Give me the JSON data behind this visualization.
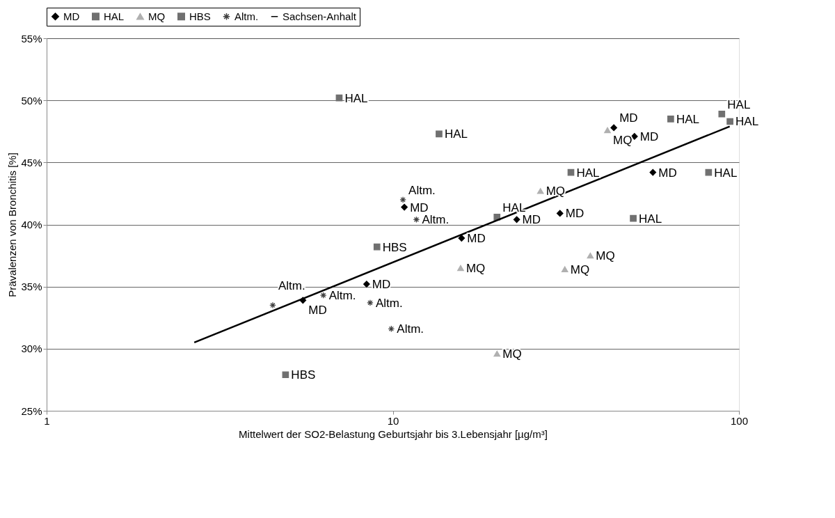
{
  "chart_data": {
    "type": "scatter",
    "xlabel": "Mittelwert der SO2-Belastung Geburtsjahr bis 3.Lebensjahr [µg/m³]",
    "ylabel": "Prävalenzen von Bronchitis [%]",
    "log": "x",
    "xlim": [
      1,
      100
    ],
    "xticks": [
      1,
      10,
      100
    ],
    "ylim": [
      25,
      55
    ],
    "yticks": [
      {
        "value": 25,
        "label": "25%"
      },
      {
        "value": 30,
        "label": "30%"
      },
      {
        "value": 35,
        "label": "35%"
      },
      {
        "value": 40,
        "label": "40%"
      },
      {
        "value": 45,
        "label": "45%"
      },
      {
        "value": 50,
        "label": "50%"
      },
      {
        "value": 55,
        "label": "55%"
      }
    ],
    "grid": "y",
    "legend": "top",
    "series": [
      {
        "name": "MD",
        "color": "#000000",
        "marker": "diamond",
        "x": [
          5.5,
          8.4,
          10.8,
          15.8,
          22.8,
          30.4,
          43.5,
          49.9,
          56.4
        ],
        "values": [
          33.9,
          35.2,
          41.4,
          38.9,
          40.4,
          40.9,
          47.8,
          47.1,
          44.2
        ]
      },
      {
        "name": "HAL",
        "color": "#707070",
        "marker": "square",
        "x": [
          7.0,
          13.6,
          20.0,
          32.7,
          49.5,
          63.5,
          81.7,
          89.2,
          94.2
        ],
        "values": [
          50.2,
          47.3,
          40.6,
          44.2,
          40.5,
          48.5,
          44.2,
          48.9,
          48.3
        ]
      },
      {
        "name": "MQ",
        "color": "#b0b0b0",
        "marker": "triangle",
        "x": [
          15.7,
          20.0,
          26.7,
          31.4,
          37.2,
          41.7
        ],
        "values": [
          36.5,
          29.6,
          42.7,
          36.4,
          37.5,
          47.6
        ]
      },
      {
        "name": "HBS",
        "color": "#707070",
        "marker": "square",
        "x": [
          4.9,
          9.0
        ],
        "values": [
          27.9,
          38.2
        ]
      },
      {
        "name": "Altm.",
        "color": "#404040",
        "marker": "cross",
        "x": [
          4.5,
          6.3,
          8.6,
          9.9,
          10.7,
          11.7
        ],
        "values": [
          33.5,
          34.3,
          33.7,
          31.6,
          42.0,
          40.4
        ]
      },
      {
        "name": "Sachsen-Anhalt",
        "type": "line",
        "color": "#000000",
        "line_style": "solid",
        "marker": "none",
        "x": [
          2.67,
          94
        ],
        "values": [
          30.5,
          47.9
        ]
      }
    ],
    "annotations": [
      {
        "text": "MD",
        "x": 5.5,
        "y": 33.9
      },
      {
        "text": "MD",
        "x": 8.4,
        "y": 35.2
      },
      {
        "text": "MD",
        "x": 10.8,
        "y": 41.4
      },
      {
        "text": "MD",
        "x": 15.8,
        "y": 38.9
      },
      {
        "text": "MD",
        "x": 22.8,
        "y": 40.4
      },
      {
        "text": "MD",
        "x": 30.4,
        "y": 40.9
      },
      {
        "text": "MD",
        "x": 43.5,
        "y": 47.8
      },
      {
        "text": "MD",
        "x": 49.9,
        "y": 47.1
      },
      {
        "text": "MD",
        "x": 56.4,
        "y": 44.2
      },
      {
        "text": "HAL",
        "x": 7.0,
        "y": 50.2
      },
      {
        "text": "HAL",
        "x": 13.6,
        "y": 47.3
      },
      {
        "text": "HAL",
        "x": 20.0,
        "y": 40.6
      },
      {
        "text": "HAL",
        "x": 32.7,
        "y": 44.2
      },
      {
        "text": "HAL",
        "x": 49.5,
        "y": 40.5
      },
      {
        "text": "HAL",
        "x": 63.5,
        "y": 48.5
      },
      {
        "text": "HAL",
        "x": 81.7,
        "y": 44.2
      },
      {
        "text": "HAL",
        "x": 89.2,
        "y": 48.9
      },
      {
        "text": "HAL",
        "x": 94.2,
        "y": 48.3
      },
      {
        "text": "MQ",
        "x": 15.7,
        "y": 36.5
      },
      {
        "text": "MQ",
        "x": 20.0,
        "y": 29.6
      },
      {
        "text": "MQ",
        "x": 26.7,
        "y": 42.7
      },
      {
        "text": "MQ",
        "x": 31.4,
        "y": 36.4
      },
      {
        "text": "MQ",
        "x": 37.2,
        "y": 37.5
      },
      {
        "text": "MQ",
        "x": 41.7,
        "y": 47.6
      },
      {
        "text": "HBS",
        "x": 4.9,
        "y": 27.9
      },
      {
        "text": "HBS",
        "x": 9.0,
        "y": 38.2
      },
      {
        "text": "Altm.",
        "x": 4.5,
        "y": 33.5
      },
      {
        "text": "Altm.",
        "x": 6.3,
        "y": 34.3
      },
      {
        "text": "Altm.",
        "x": 8.6,
        "y": 33.7
      },
      {
        "text": "Altm.",
        "x": 9.9,
        "y": 31.6
      },
      {
        "text": "Altm.",
        "x": 10.7,
        "y": 42.0
      },
      {
        "text": "Altm.",
        "x": 11.7,
        "y": 40.4
      }
    ]
  }
}
